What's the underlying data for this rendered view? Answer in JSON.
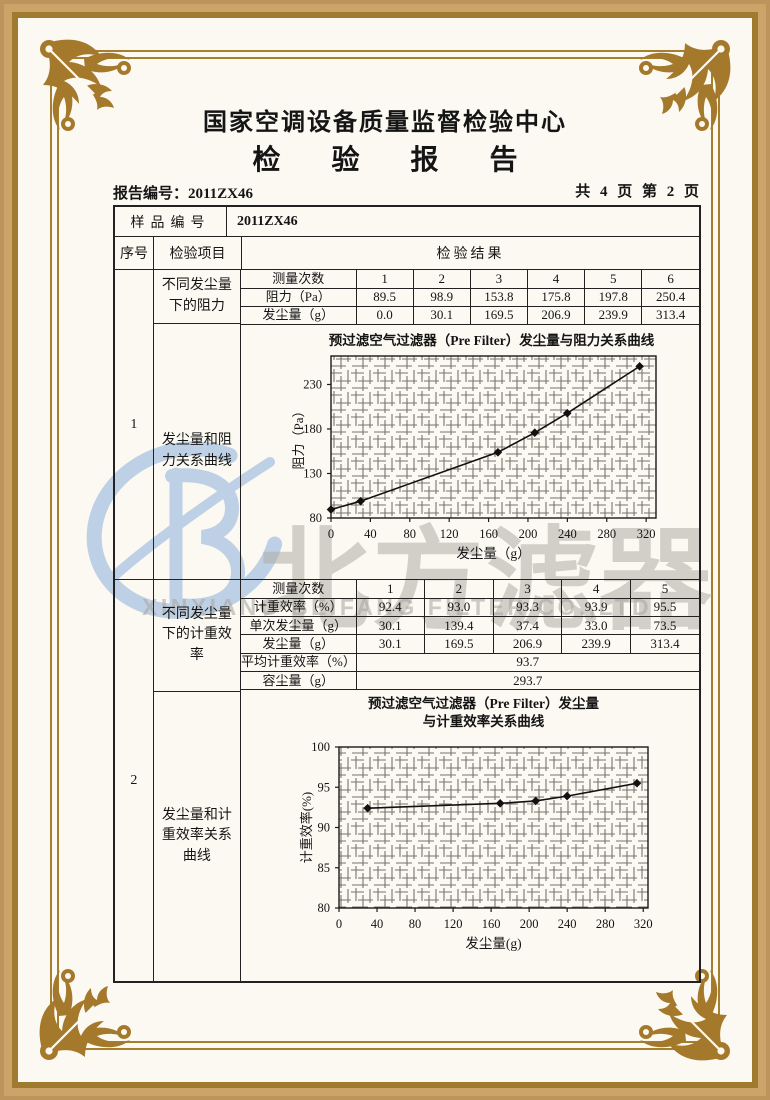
{
  "header": {
    "org": "国家空调设备质量监督检验中心",
    "title": "检 验 报 告",
    "report_no": "报告编号：2011ZX46",
    "page_info": "共 4 页 第 2 页"
  },
  "watermark": {
    "cn": "北方滤器",
    "en": "XINXIANG BEIFANG FILTER CO.,LTD",
    "logo": "B-swoosh-logo",
    "logo_color": "#aec6e2",
    "gold_color": "#a5792b"
  },
  "table": {
    "sample_no_label": "样品编号",
    "sample_no": "2011ZX46",
    "col_sn": "序号",
    "col_item": "检验项目",
    "col_result": "检验结果",
    "row1": {
      "sn": "1",
      "item_a": "不同发尘量下的阻力",
      "item_b": "发尘量和阻力关系曲线"
    },
    "row2": {
      "sn": "2",
      "item_a": "不同发尘量下的计重效率",
      "item_b": "发尘量和计重效率关系曲线"
    },
    "t1": {
      "head_label": "测量次数",
      "cols": [
        "1",
        "2",
        "3",
        "4",
        "5",
        "6"
      ],
      "r1_label": "阻力（Pa）",
      "r1": [
        "89.5",
        "98.9",
        "153.8",
        "175.8",
        "197.8",
        "250.4"
      ],
      "r2_label": "发尘量（g）",
      "r2": [
        "0.0",
        "30.1",
        "169.5",
        "206.9",
        "239.9",
        "313.4"
      ]
    },
    "t2": {
      "head_label": "测量次数",
      "cols": [
        "1",
        "2",
        "3",
        "4",
        "5"
      ],
      "r1_label": "计重效率（%）",
      "r1": [
        "92.4",
        "93.0",
        "93.3",
        "93.9",
        "95.5"
      ],
      "r2_label": "单次发尘量（g）",
      "r2": [
        "30.1",
        "139.4",
        "37.4",
        "33.0",
        "73.5"
      ],
      "r3_label": "发尘量（g）",
      "r3": [
        "30.1",
        "169.5",
        "206.9",
        "239.9",
        "313.4"
      ],
      "avg_label": "平均计重效率（%）",
      "avg": "93.7",
      "cap_label": "容尘量（g）",
      "cap": "293.7"
    }
  },
  "chart_data": [
    {
      "type": "line",
      "title": "预过滤空气过滤器（Pre Filter）发尘量与阻力关系曲线",
      "xlabel": "发尘量（g）",
      "ylabel": "阻力（Pa）",
      "x": [
        0,
        30.1,
        169.5,
        206.9,
        239.9,
        313.4
      ],
      "y": [
        89.5,
        98.9,
        153.8,
        175.8,
        197.8,
        250.4
      ],
      "xlim": [
        0,
        330
      ],
      "ylim": [
        80,
        262
      ],
      "xticks": [
        0,
        40,
        80,
        120,
        160,
        200,
        240,
        280,
        320
      ],
      "yticks": [
        80,
        130,
        180,
        230
      ],
      "grid": "dense-hatch",
      "legend": "none"
    },
    {
      "type": "line",
      "title": "预过滤空气过滤器（Pre Filter）发尘量",
      "title2": "与计重效率关系曲线",
      "xlabel": "发尘量(g)",
      "ylabel": "计重效率(%)",
      "x": [
        30.1,
        169.5,
        206.9,
        239.9,
        313.4
      ],
      "y": [
        92.4,
        93.0,
        93.3,
        93.9,
        95.5
      ],
      "xlim": [
        0,
        325
      ],
      "ylim": [
        80,
        100
      ],
      "xticks": [
        0,
        40,
        80,
        120,
        160,
        200,
        240,
        280,
        320
      ],
      "yticks": [
        80,
        85,
        90,
        95,
        100
      ],
      "grid": "dense-hatch",
      "legend": "none"
    }
  ]
}
